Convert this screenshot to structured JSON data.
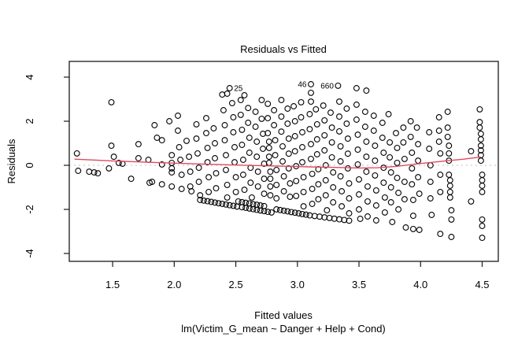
{
  "title": "Residuals vs Fitted",
  "colors": {
    "smoother": "#e04a5e",
    "zero_line": "#bfbfbf",
    "point_stroke": "#000000",
    "frame": "#1a1a1a",
    "background": "#ffffff"
  },
  "chart_data": {
    "type": "scatter",
    "title": "Residuals vs Fitted",
    "xlabel": "Fitted values",
    "ylabel": "Residuals",
    "sub": "lm(Victim_G_mean ~ Danger + Help + Cond)",
    "xlim": [
      1.148,
      4.631
    ],
    "ylim": [
      -4.357,
      4.714
    ],
    "grid": false,
    "x_ticks": [
      1.5,
      2.0,
      2.5,
      3.0,
      3.5,
      4.0,
      4.5
    ],
    "x_tick_labels": [
      "1.5",
      "2.0",
      "2.5",
      "3.0",
      "3.5",
      "4.0",
      "4.5"
    ],
    "y_ticks": [
      -4,
      -2,
      0,
      2,
      4
    ],
    "y_tick_labels": [
      "-4",
      "-2",
      "0",
      "2",
      "4"
    ],
    "zero_line_y": 0,
    "labeled_points": [
      {
        "id": "25",
        "x": 2.45,
        "y": 3.5,
        "side": "right"
      },
      {
        "id": "46",
        "x": 3.11,
        "y": 3.68,
        "side": "left"
      },
      {
        "id": "660",
        "x": 3.33,
        "y": 3.61,
        "side": "left"
      }
    ],
    "smoother": [
      [
        1.19,
        0.28
      ],
      [
        1.5,
        0.2
      ],
      [
        1.85,
        0.13
      ],
      [
        2.2,
        0.06
      ],
      [
        2.5,
        0.01
      ],
      [
        2.8,
        -0.03
      ],
      [
        3.1,
        -0.07
      ],
      [
        3.35,
        -0.1
      ],
      [
        3.5,
        -0.12
      ],
      [
        3.65,
        -0.11
      ],
      [
        3.8,
        -0.05
      ],
      [
        3.95,
        0.05
      ],
      [
        4.2,
        0.2
      ],
      [
        4.35,
        0.28
      ],
      [
        4.49,
        0.38
      ]
    ],
    "points": [
      [
        1.21,
        0.54
      ],
      [
        1.22,
        -0.25
      ],
      [
        1.31,
        -0.29
      ],
      [
        1.35,
        -0.32
      ],
      [
        1.38,
        -0.36
      ],
      [
        1.47,
        -0.14
      ],
      [
        1.49,
        2.86
      ],
      [
        1.49,
        0.89
      ],
      [
        1.51,
        0.39
      ],
      [
        1.55,
        0.11
      ],
      [
        1.58,
        0.07
      ],
      [
        1.65,
        -0.61
      ],
      [
        1.71,
        0.96
      ],
      [
        1.71,
        0.32
      ],
      [
        1.79,
        0.25
      ],
      [
        1.8,
        -0.79
      ],
      [
        1.82,
        -0.75
      ],
      [
        1.84,
        1.82
      ],
      [
        1.86,
        1.25
      ],
      [
        1.9,
        1.14
      ],
      [
        1.9,
        0.04
      ],
      [
        1.9,
        -0.86
      ],
      [
        1.96,
        2.0
      ],
      [
        1.98,
        0.46
      ],
      [
        1.98,
        0.11
      ],
      [
        1.98,
        -0.14
      ],
      [
        1.98,
        -0.32
      ],
      [
        1.98,
        -0.96
      ],
      [
        2.03,
        2.25
      ],
      [
        2.03,
        1.57
      ],
      [
        2.04,
        0.82
      ],
      [
        2.05,
        0.25
      ],
      [
        2.06,
        -0.43
      ],
      [
        2.06,
        -1.07
      ],
      [
        2.1,
        1.11
      ],
      [
        2.12,
        0.39
      ],
      [
        2.13,
        -0.29
      ],
      [
        2.13,
        -0.96
      ],
      [
        2.14,
        -1.18
      ],
      [
        2.18,
        1.86
      ],
      [
        2.18,
        1.21
      ],
      [
        2.19,
        0.54
      ],
      [
        2.2,
        -0.11
      ],
      [
        2.2,
        -0.75
      ],
      [
        2.21,
        -1.36
      ],
      [
        2.26,
        2.14
      ],
      [
        2.26,
        1.46
      ],
      [
        2.27,
        0.79
      ],
      [
        2.27,
        0.14
      ],
      [
        2.28,
        -0.54
      ],
      [
        2.28,
        -1.21
      ],
      [
        2.32,
        1.68
      ],
      [
        2.33,
        1.0
      ],
      [
        2.33,
        0.32
      ],
      [
        2.34,
        -0.36
      ],
      [
        2.34,
        -1.04
      ],
      [
        2.39,
        3.21
      ],
      [
        2.43,
        3.25
      ],
      [
        2.4,
        2.5
      ],
      [
        2.41,
        1.82
      ],
      [
        2.41,
        1.14
      ],
      [
        2.42,
        0.46
      ],
      [
        2.42,
        -0.21
      ],
      [
        2.43,
        -0.89
      ],
      [
        2.43,
        -1.46
      ],
      [
        2.47,
        2.82
      ],
      [
        2.48,
        2.18
      ],
      [
        2.48,
        1.5
      ],
      [
        2.49,
        0.82
      ],
      [
        2.49,
        0.14
      ],
      [
        2.5,
        -0.54
      ],
      [
        2.5,
        -1.21
      ],
      [
        2.54,
        2.96
      ],
      [
        2.54,
        2.29
      ],
      [
        2.55,
        1.61
      ],
      [
        2.55,
        0.93
      ],
      [
        2.56,
        0.25
      ],
      [
        2.56,
        -0.43
      ],
      [
        2.57,
        -1.11
      ],
      [
        2.57,
        3.18
      ],
      [
        2.6,
        2.6
      ],
      [
        2.6,
        1.93
      ],
      [
        2.61,
        1.25
      ],
      [
        2.61,
        0.57
      ],
      [
        2.62,
        -0.11
      ],
      [
        2.62,
        -0.79
      ],
      [
        2.63,
        -1.46
      ],
      [
        2.66,
        2.43
      ],
      [
        2.66,
        1.75
      ],
      [
        2.67,
        1.07
      ],
      [
        2.67,
        0.39
      ],
      [
        2.68,
        -0.29
      ],
      [
        2.68,
        -0.96
      ],
      [
        2.71,
        2.96
      ],
      [
        2.71,
        2.11
      ],
      [
        2.72,
        1.43
      ],
      [
        2.72,
        0.75
      ],
      [
        2.73,
        0.07
      ],
      [
        2.73,
        -0.61
      ],
      [
        2.73,
        -1.29
      ],
      [
        2.76,
        2.79
      ],
      [
        2.76,
        2.14
      ],
      [
        2.76,
        1.46
      ],
      [
        2.77,
        1.07
      ],
      [
        2.77,
        0.79
      ],
      [
        2.77,
        0.39
      ],
      [
        2.77,
        0.11
      ],
      [
        2.78,
        -0.29
      ],
      [
        2.78,
        -0.61
      ],
      [
        2.78,
        -0.96
      ],
      [
        2.78,
        -1.36
      ],
      [
        2.81,
        2.5
      ],
      [
        2.81,
        1.82
      ],
      [
        2.82,
        1.14
      ],
      [
        2.82,
        0.46
      ],
      [
        2.83,
        -0.21
      ],
      [
        2.83,
        -0.89
      ],
      [
        2.83,
        -1.5
      ],
      [
        2.87,
        2.96
      ],
      [
        2.87,
        2.21
      ],
      [
        2.87,
        1.53
      ],
      [
        2.88,
        0.86
      ],
      [
        2.88,
        0.18
      ],
      [
        2.89,
        -0.5
      ],
      [
        2.89,
        -1.18
      ],
      [
        2.92,
        2.57
      ],
      [
        2.92,
        1.89
      ],
      [
        2.93,
        1.21
      ],
      [
        2.93,
        0.53
      ],
      [
        2.93,
        -0.14
      ],
      [
        2.94,
        -0.82
      ],
      [
        2.94,
        -1.43
      ],
      [
        2.97,
        2.68
      ],
      [
        2.98,
        2.0
      ],
      [
        2.98,
        1.32
      ],
      [
        2.98,
        0.64
      ],
      [
        2.99,
        -0.04
      ],
      [
        2.99,
        -0.71
      ],
      [
        2.99,
        -1.39
      ],
      [
        3.03,
        2.86
      ],
      [
        3.03,
        2.18
      ],
      [
        3.04,
        1.5
      ],
      [
        3.04,
        0.82
      ],
      [
        3.04,
        0.14
      ],
      [
        3.05,
        -0.54
      ],
      [
        3.05,
        -1.21
      ],
      [
        3.05,
        -1.86
      ],
      [
        3.11,
        3.29
      ],
      [
        3.11,
        2.89
      ],
      [
        3.1,
        2.32
      ],
      [
        3.1,
        1.64
      ],
      [
        3.11,
        0.96
      ],
      [
        3.11,
        0.29
      ],
      [
        3.12,
        -0.39
      ],
      [
        3.12,
        -1.07
      ],
      [
        3.12,
        -1.75
      ],
      [
        3.15,
        2.54
      ],
      [
        3.16,
        1.86
      ],
      [
        3.16,
        1.18
      ],
      [
        3.16,
        0.5
      ],
      [
        3.17,
        -0.18
      ],
      [
        3.17,
        -0.86
      ],
      [
        3.17,
        -1.54
      ],
      [
        3.21,
        2.71
      ],
      [
        3.22,
        2.04
      ],
      [
        3.22,
        1.36
      ],
      [
        3.22,
        0.68
      ],
      [
        3.23,
        0.0
      ],
      [
        3.23,
        -0.68
      ],
      [
        3.23,
        -1.36
      ],
      [
        3.24,
        -2.04
      ],
      [
        3.27,
        2.39
      ],
      [
        3.28,
        1.71
      ],
      [
        3.28,
        1.04
      ],
      [
        3.28,
        0.36
      ],
      [
        3.29,
        -0.32
      ],
      [
        3.29,
        -1.0
      ],
      [
        3.29,
        -1.68
      ],
      [
        3.34,
        2.89
      ],
      [
        3.34,
        2.21
      ],
      [
        3.34,
        1.54
      ],
      [
        3.35,
        0.86
      ],
      [
        3.35,
        0.18
      ],
      [
        3.35,
        -0.5
      ],
      [
        3.36,
        -1.18
      ],
      [
        3.36,
        -1.86
      ],
      [
        3.4,
        2.57
      ],
      [
        3.4,
        1.89
      ],
      [
        3.41,
        1.21
      ],
      [
        3.41,
        0.53
      ],
      [
        3.41,
        -0.14
      ],
      [
        3.42,
        -0.82
      ],
      [
        3.42,
        -1.5
      ],
      [
        3.42,
        -2.18
      ],
      [
        3.48,
        3.5
      ],
      [
        3.48,
        2.75
      ],
      [
        3.48,
        2.07
      ],
      [
        3.49,
        1.39
      ],
      [
        3.49,
        0.71
      ],
      [
        3.49,
        0.04
      ],
      [
        3.5,
        -0.64
      ],
      [
        3.5,
        -1.32
      ],
      [
        3.5,
        -2.0
      ],
      [
        3.51,
        -2.43
      ],
      [
        3.56,
        3.39
      ],
      [
        3.55,
        2.43
      ],
      [
        3.55,
        1.75
      ],
      [
        3.56,
        1.07
      ],
      [
        3.56,
        0.39
      ],
      [
        3.56,
        -0.29
      ],
      [
        3.57,
        -0.96
      ],
      [
        3.57,
        -1.64
      ],
      [
        3.57,
        -2.32
      ],
      [
        3.62,
        2.25
      ],
      [
        3.62,
        1.57
      ],
      [
        3.63,
        0.89
      ],
      [
        3.63,
        0.21
      ],
      [
        3.63,
        -0.46
      ],
      [
        3.64,
        -1.14
      ],
      [
        3.64,
        -1.82
      ],
      [
        3.64,
        -2.5
      ],
      [
        3.69,
        1.93
      ],
      [
        3.69,
        1.25
      ],
      [
        3.7,
        0.57
      ],
      [
        3.7,
        -0.11
      ],
      [
        3.7,
        -0.79
      ],
      [
        3.71,
        -1.46
      ],
      [
        3.71,
        -2.14
      ],
      [
        3.74,
        2.32
      ],
      [
        3.75,
        1.04
      ],
      [
        3.75,
        0.36
      ],
      [
        3.76,
        -0.32
      ],
      [
        3.76,
        -1.0
      ],
      [
        3.76,
        -1.68
      ],
      [
        3.77,
        -2.57
      ],
      [
        3.8,
        1.46
      ],
      [
        3.81,
        0.79
      ],
      [
        3.81,
        0.11
      ],
      [
        3.81,
        -0.57
      ],
      [
        3.82,
        -1.25
      ],
      [
        3.82,
        -2.0
      ],
      [
        3.86,
        1.71
      ],
      [
        3.86,
        1.04
      ],
      [
        3.87,
        0.29
      ],
      [
        3.87,
        -0.75
      ],
      [
        3.87,
        -1.54
      ],
      [
        3.88,
        -2.82
      ],
      [
        3.92,
        2.0
      ],
      [
        3.92,
        1.29
      ],
      [
        3.93,
        0.57
      ],
      [
        3.93,
        -0.14
      ],
      [
        3.93,
        -0.86
      ],
      [
        3.94,
        -1.57
      ],
      [
        3.94,
        -2.29
      ],
      [
        3.94,
        -2.89
      ],
      [
        3.97,
        1.71
      ],
      [
        3.98,
        0.96
      ],
      [
        3.98,
        0.21
      ],
      [
        3.98,
        -0.54
      ],
      [
        3.99,
        -1.29
      ],
      [
        3.99,
        -2.93
      ],
      [
        4.07,
        1.5
      ],
      [
        4.07,
        0.75
      ],
      [
        4.08,
        0.0
      ],
      [
        4.08,
        -0.75
      ],
      [
        4.08,
        -1.5
      ],
      [
        4.09,
        -2.25
      ],
      [
        4.15,
        2.18
      ],
      [
        4.15,
        1.57
      ],
      [
        4.15,
        1.07
      ],
      [
        4.16,
        0.54
      ],
      [
        4.16,
        -0.43
      ],
      [
        4.16,
        -1.21
      ],
      [
        4.16,
        -3.11
      ],
      [
        4.22,
        2.43
      ],
      [
        4.22,
        1.71
      ],
      [
        4.22,
        1.29
      ],
      [
        4.23,
        0.89
      ],
      [
        4.23,
        0.54
      ],
      [
        4.23,
        0.21
      ],
      [
        4.23,
        -0.43
      ],
      [
        4.24,
        -0.68
      ],
      [
        4.24,
        -0.93
      ],
      [
        4.24,
        -1.21
      ],
      [
        4.24,
        -1.46
      ],
      [
        4.25,
        -2.04
      ],
      [
        4.25,
        -2.46
      ],
      [
        4.25,
        -3.25
      ],
      [
        4.41,
        0.64
      ],
      [
        4.41,
        -1.64
      ],
      [
        4.48,
        2.54
      ],
      [
        4.48,
        1.96
      ],
      [
        4.48,
        1.71
      ],
      [
        4.49,
        1.43
      ],
      [
        4.49,
        1.18
      ],
      [
        4.49,
        0.89
      ],
      [
        4.49,
        0.68
      ],
      [
        4.49,
        0.46
      ],
      [
        4.49,
        0.21
      ],
      [
        4.5,
        -0.43
      ],
      [
        4.5,
        -0.68
      ],
      [
        4.5,
        -0.93
      ],
      [
        4.5,
        -1.21
      ],
      [
        4.5,
        -2.46
      ],
      [
        4.5,
        -2.75
      ],
      [
        4.5,
        -3.29
      ],
      [
        2.21,
        -1.57
      ],
      [
        2.24,
        -1.6
      ],
      [
        2.27,
        -1.63
      ],
      [
        2.3,
        -1.66
      ],
      [
        2.33,
        -1.69
      ],
      [
        2.36,
        -1.72
      ],
      [
        2.39,
        -1.75
      ],
      [
        2.42,
        -1.78
      ],
      [
        2.45,
        -1.81
      ],
      [
        2.48,
        -1.84
      ],
      [
        2.51,
        -1.87
      ],
      [
        2.55,
        -1.9
      ],
      [
        2.58,
        -1.93
      ],
      [
        2.61,
        -1.96
      ],
      [
        2.64,
        -1.99
      ],
      [
        2.67,
        -2.02
      ],
      [
        2.7,
        -2.05
      ],
      [
        2.73,
        -2.08
      ],
      [
        2.76,
        -2.11
      ],
      [
        2.79,
        -2.14
      ],
      [
        2.83,
        -2.0
      ],
      [
        2.86,
        -2.03
      ],
      [
        2.89,
        -2.06
      ],
      [
        2.92,
        -2.09
      ],
      [
        2.95,
        -2.12
      ],
      [
        2.98,
        -2.15
      ],
      [
        3.01,
        -2.18
      ],
      [
        3.04,
        -2.21
      ],
      [
        3.07,
        -2.24
      ],
      [
        3.1,
        -2.27
      ],
      [
        2.52,
        -1.64
      ],
      [
        2.55,
        -1.67
      ],
      [
        2.58,
        -1.7
      ],
      [
        2.61,
        -1.73
      ],
      [
        2.64,
        -1.76
      ],
      [
        2.67,
        -1.79
      ],
      [
        2.7,
        -1.82
      ],
      [
        2.73,
        -1.85
      ],
      [
        3.14,
        -2.3
      ],
      [
        3.18,
        -2.33
      ],
      [
        3.22,
        -2.36
      ],
      [
        3.26,
        -2.39
      ],
      [
        3.3,
        -2.42
      ],
      [
        3.34,
        -2.45
      ],
      [
        3.38,
        -2.48
      ],
      [
        3.42,
        -2.51
      ]
    ]
  }
}
